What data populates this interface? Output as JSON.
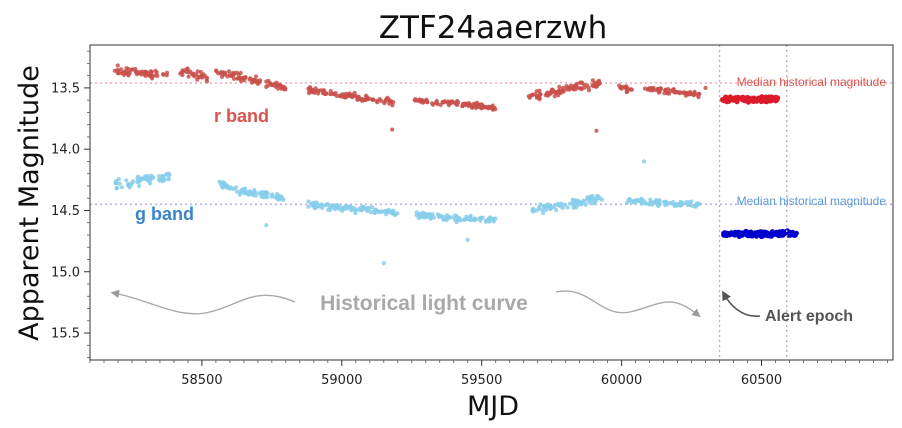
{
  "chart_data": {
    "type": "scatter",
    "title": "ZTF24aaerzwh",
    "xlabel": "MJD",
    "ylabel": "Apparent Magnitude",
    "xlim": [
      58100,
      60970
    ],
    "ylim": [
      15.72,
      13.15
    ],
    "y_inverted": true,
    "grid": false,
    "xticks": [
      58500,
      59000,
      59500,
      60000,
      60500
    ],
    "yticks": [
      13.5,
      14.0,
      14.5,
      15.0,
      15.5
    ],
    "ytick_labels": [
      "13.5",
      "14.0",
      "14.5",
      "15.0",
      "15.5"
    ],
    "series": [
      {
        "name": "r band",
        "label_color": "#d9534f",
        "color": "#c9504b",
        "alert_color": "#dd1a2a",
        "median": 13.46,
        "median_label": "Median historical magnitude",
        "historical_segments": [
          {
            "mjd": [
              58180,
              58380
            ],
            "mag_start": 13.35,
            "mag_end": 13.4,
            "scatter": 0.05
          },
          {
            "mjd": [
              58420,
              58520
            ],
            "mag_start": 13.36,
            "mag_end": 13.42,
            "scatter": 0.05
          },
          {
            "mjd": [
              58550,
              58660
            ],
            "mag_start": 13.38,
            "mag_end": 13.42,
            "scatter": 0.05
          },
          {
            "mjd": [
              58660,
              58800
            ],
            "mag_start": 13.42,
            "mag_end": 13.5,
            "scatter": 0.04
          },
          {
            "mjd": [
              58880,
              59190
            ],
            "mag_start": 13.52,
            "mag_end": 13.62,
            "scatter": 0.04
          },
          {
            "mjd": [
              59250,
              59550
            ],
            "mag_start": 13.6,
            "mag_end": 13.66,
            "scatter": 0.03
          },
          {
            "mjd": [
              59660,
              59930
            ],
            "mag_start": 13.58,
            "mag_end": 13.46,
            "scatter": 0.05
          },
          {
            "mjd": [
              59990,
              60040
            ],
            "mag_start": 13.48,
            "mag_end": 13.52,
            "scatter": 0.04
          },
          {
            "mjd": [
              60080,
              60280
            ],
            "mag_start": 13.5,
            "mag_end": 13.56,
            "scatter": 0.03
          }
        ],
        "outliers": [
          {
            "mjd": 59180,
            "mag": 13.84
          },
          {
            "mjd": 59910,
            "mag": 13.85
          },
          {
            "mjd": 60300,
            "mag": 13.5
          }
        ],
        "alert_epoch": {
          "mjd": [
            60360,
            60560
          ],
          "mag": 13.59,
          "scatter": 0.03
        }
      },
      {
        "name": "g band",
        "label_color": "#3a86c8",
        "color": "#87ceeb",
        "alert_color": "#0000cd",
        "median": 14.45,
        "median_label": "Median historical magnitude",
        "historical_segments": [
          {
            "mjd": [
              58190,
              58390
            ],
            "mag_start": 14.28,
            "mag_end": 14.22,
            "scatter": 0.07
          },
          {
            "mjd": [
              58560,
              58640
            ],
            "mag_start": 14.28,
            "mag_end": 14.34,
            "scatter": 0.05
          },
          {
            "mjd": [
              58640,
              58800
            ],
            "mag_start": 14.34,
            "mag_end": 14.4,
            "scatter": 0.04
          },
          {
            "mjd": [
              58880,
              59200
            ],
            "mag_start": 14.45,
            "mag_end": 14.52,
            "scatter": 0.04
          },
          {
            "mjd": [
              59260,
              59550
            ],
            "mag_start": 14.54,
            "mag_end": 14.58,
            "scatter": 0.04
          },
          {
            "mjd": [
              59680,
              59930
            ],
            "mag_start": 14.5,
            "mag_end": 14.4,
            "scatter": 0.05
          },
          {
            "mjd": [
              60020,
              60280
            ],
            "mag_start": 14.42,
            "mag_end": 14.46,
            "scatter": 0.04
          }
        ],
        "outliers": [
          {
            "mjd": 58730,
            "mag": 14.62
          },
          {
            "mjd": 59150,
            "mag": 14.93
          },
          {
            "mjd": 59450,
            "mag": 14.74
          },
          {
            "mjd": 60080,
            "mag": 14.1
          }
        ],
        "alert_epoch": {
          "mjd": [
            60360,
            60630
          ],
          "mag": 14.69,
          "scatter": 0.03
        }
      }
    ],
    "vlines": [
      60350,
      60590
    ],
    "annotations": {
      "historical": "Historical light curve",
      "alert": "Alert epoch"
    }
  }
}
